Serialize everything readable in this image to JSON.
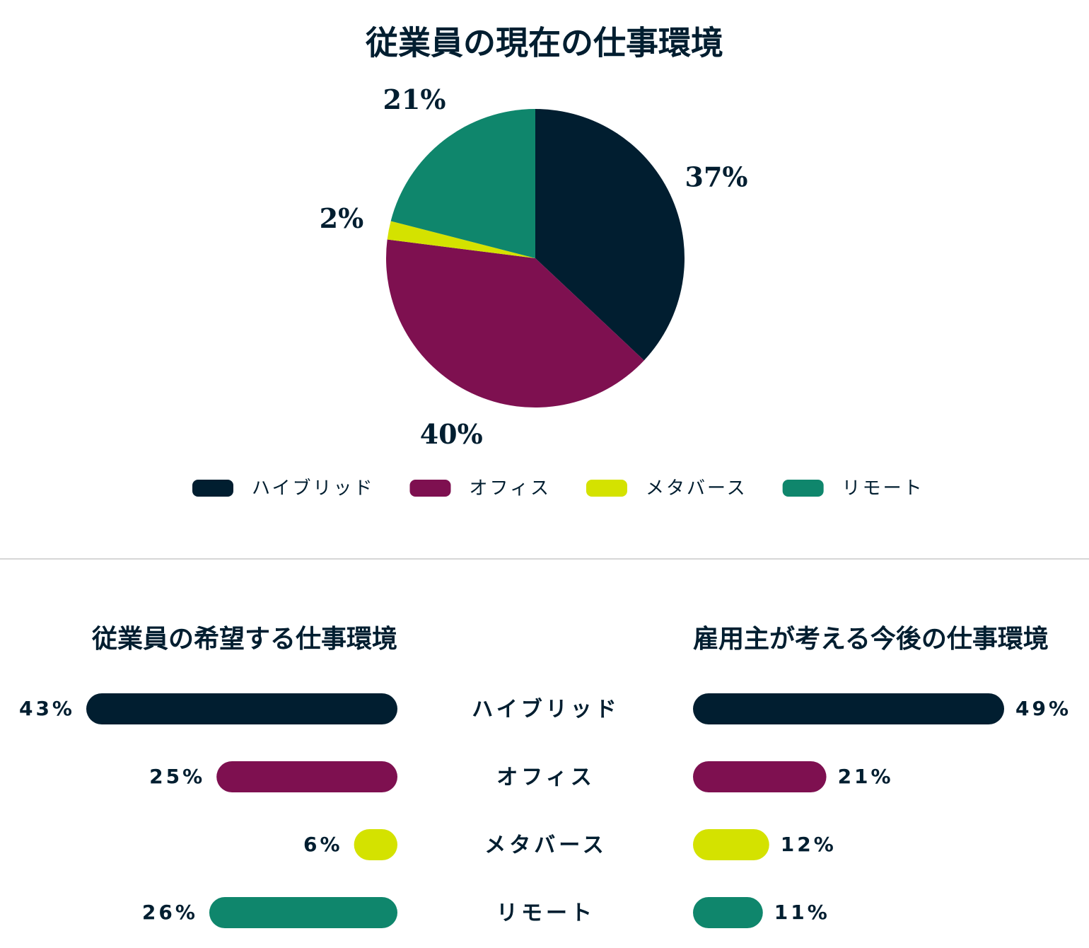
{
  "chart_data": [
    {
      "type": "pie",
      "title": "従業員の現在の仕事環境",
      "categories": [
        "ハイブリッド",
        "オフィス",
        "メタバース",
        "リモート"
      ],
      "values": [
        37,
        40,
        2,
        21
      ],
      "value_labels": [
        "37%",
        "40%",
        "2%",
        "21%"
      ],
      "colors": [
        "#011e30",
        "#7e1050",
        "#d4e200",
        "#0f866c"
      ]
    },
    {
      "type": "butterfly",
      "categories": [
        "ハイブリッド",
        "オフィス",
        "メタバース",
        "リモート"
      ],
      "colors": [
        "#011e30",
        "#7e1050",
        "#d4e200",
        "#0f866c"
      ],
      "series": [
        {
          "name": "従業員の希望する仕事環境",
          "values": [
            43,
            25,
            6,
            26
          ],
          "value_labels": [
            "43%",
            "25%",
            "6%",
            "26%"
          ]
        },
        {
          "name": "雇用主が考える今後の仕事環境",
          "values": [
            49,
            21,
            12,
            11
          ],
          "value_labels": [
            "49%",
            "21%",
            "12%",
            "11%"
          ]
        }
      ]
    }
  ]
}
